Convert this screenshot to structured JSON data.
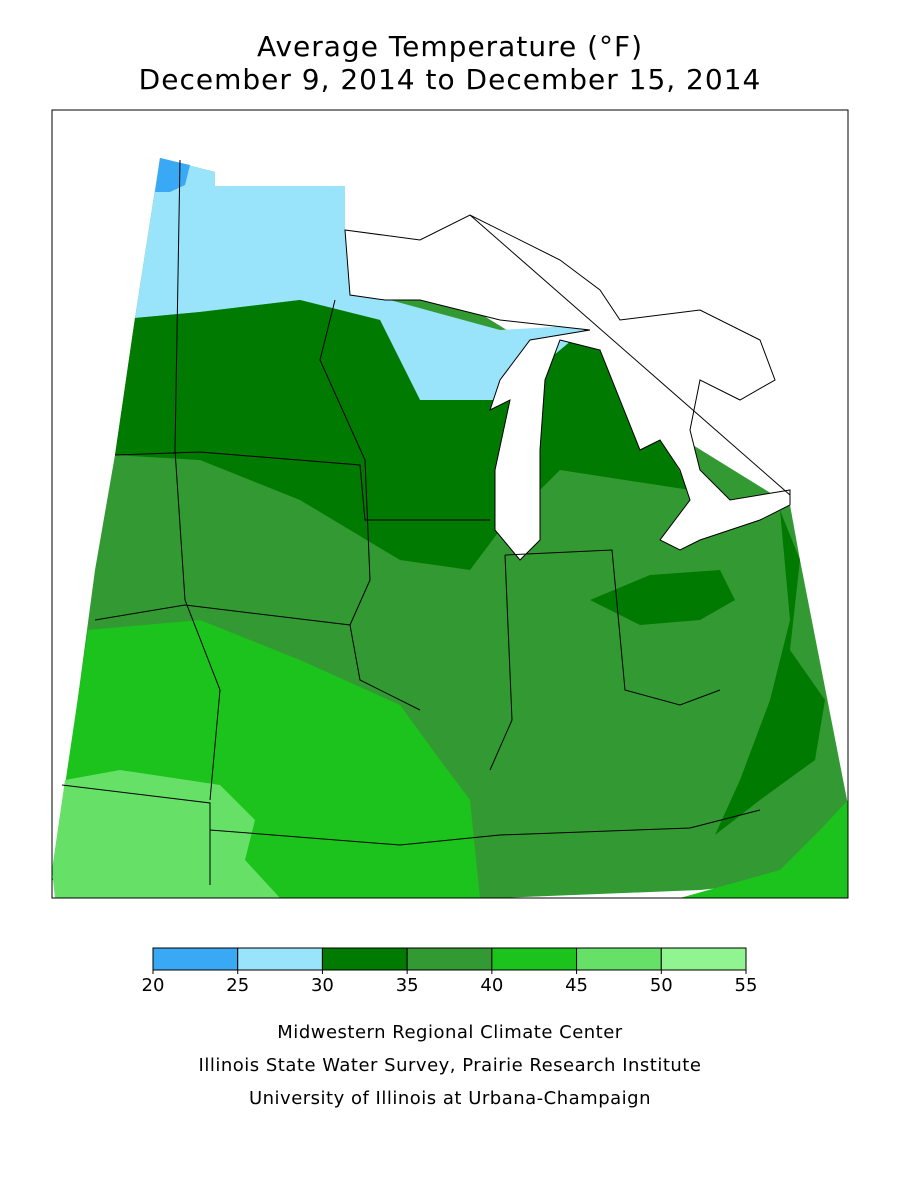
{
  "title": "Average Temperature (°F)",
  "subtitle": "December 9, 2014 to December 15, 2014",
  "legend": {
    "ticks": [
      20,
      25,
      30,
      35,
      40,
      45,
      50,
      55
    ],
    "colors": [
      "#3aa9f5",
      "#99e3fb",
      "#007a00",
      "#339933",
      "#1cc31c",
      "#66e066",
      "#90f590"
    ]
  },
  "credits": [
    "Midwestern Regional Climate Center",
    "Illinois State Water Survey, Prairie Research Institute",
    "University of Illinois at Urbana-Champaign"
  ]
}
